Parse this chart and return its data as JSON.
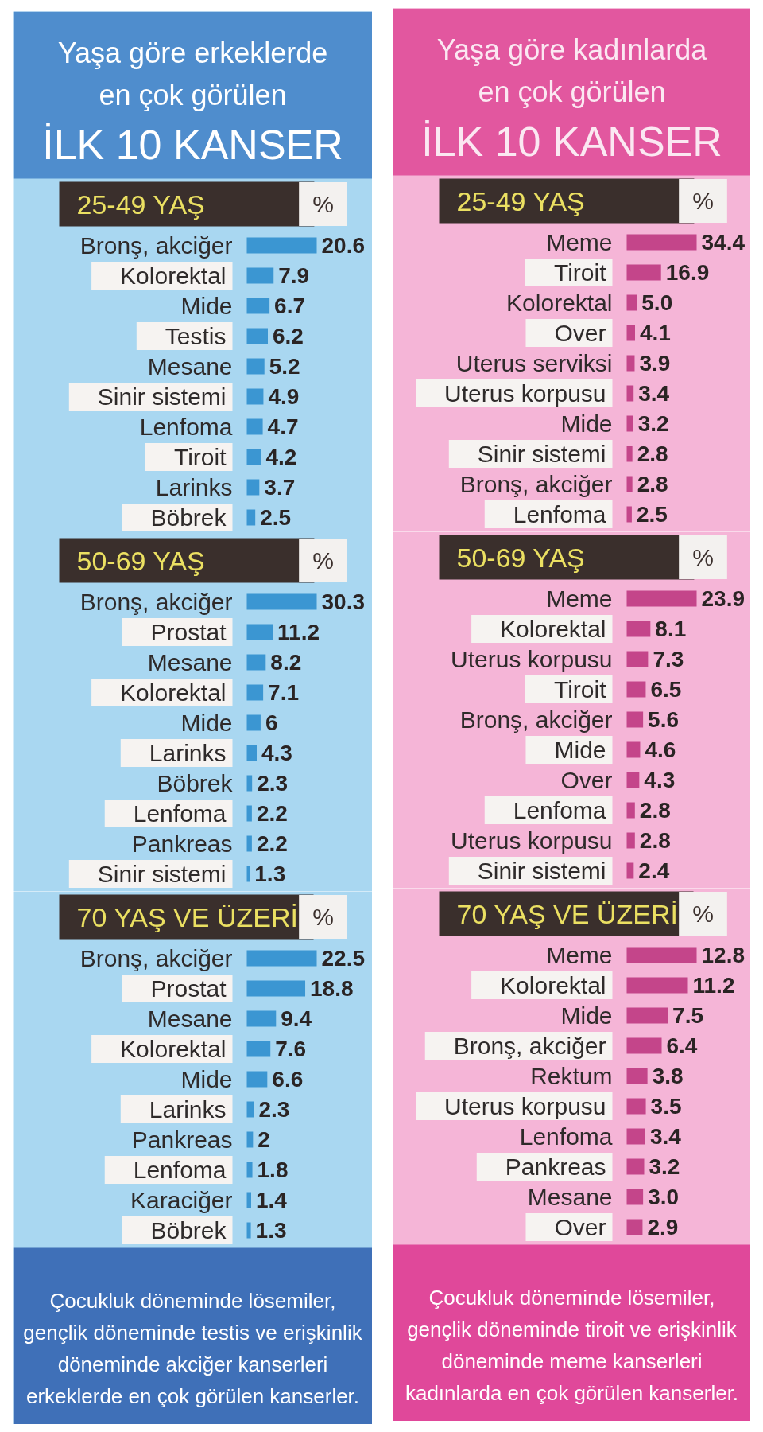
{
  "chart_data": [
    {
      "type": "bar",
      "orientation": "horizontal",
      "title": "Yaşa göre erkeklerde\nen çok görülen\nİLK 10 KANSER",
      "subtitle": "25-49 YAŞ",
      "xlabel": "%",
      "categories": [
        "Bronş, akciğer",
        "Kolorektal",
        "Mide",
        "Testis",
        "Mesane",
        "Sinir sistemi",
        "Lenfoma",
        "Tiroit",
        "Larinks",
        "Böbrek"
      ],
      "values": [
        20.6,
        7.9,
        6.7,
        6.2,
        5.2,
        4.9,
        4.7,
        4.2,
        3.7,
        2.5
      ],
      "color": "#3b96d2",
      "data_labels": true
    },
    {
      "type": "bar",
      "orientation": "horizontal",
      "title": "50-69 YAŞ",
      "xlabel": "%",
      "categories": [
        "Bronş, akciğer",
        "Prostat",
        "Mesane",
        "Kolorektal",
        "Mide",
        "Larinks",
        "Böbrek",
        "Lenfoma",
        "Pankreas",
        "Sinir sistemi"
      ],
      "values": [
        30.3,
        11.2,
        8.2,
        7.1,
        6,
        4.3,
        2.3,
        2.2,
        2.2,
        1.3
      ],
      "color": "#3b96d2",
      "data_labels": true
    },
    {
      "type": "bar",
      "orientation": "horizontal",
      "title": "70 YAŞ VE ÜZERİ",
      "xlabel": "%",
      "categories": [
        "Bronş, akciğer",
        "Prostat",
        "Mesane",
        "Kolorektal",
        "Mide",
        "Larinks",
        "Pankreas",
        "Lenfoma",
        "Karaciğer",
        "Böbrek"
      ],
      "values": [
        22.5,
        18.8,
        9.4,
        7.6,
        6.6,
        2.3,
        2,
        1.8,
        1.4,
        1.3
      ],
      "color": "#3b96d2",
      "data_labels": true,
      "annotations": [
        "Çocukluk döneminde lösemiler,\ngençlik döneminde testis ve erişkinlik\ndöneminde akciğer kanserleri\nerkeklerde en çok görülen kanserler."
      ]
    },
    {
      "type": "bar",
      "orientation": "horizontal",
      "title": "Yaşa göre kadınlarda\nen çok görülen\nİLK 10 KANSER",
      "subtitle": "25-49 YAŞ",
      "xlabel": "%",
      "categories": [
        "Meme",
        "Tiroit",
        "Kolorektal",
        "Over",
        "Uterus serviksi",
        "Uterus korpusu",
        "Mide",
        "Sinir sistemi",
        "Bronş, akciğer",
        "Lenfoma"
      ],
      "values": [
        34.4,
        16.9,
        5.0,
        4.1,
        3.9,
        3.4,
        3.2,
        2.8,
        2.8,
        2.5
      ],
      "value_labels": [
        "34.4",
        "16.9",
        "5.0",
        "4.1",
        "3.9",
        "3.4",
        "3.2",
        "2.8",
        "2.8",
        "2.5"
      ],
      "color": "#c4458a"
    },
    {
      "type": "bar",
      "orientation": "horizontal",
      "title": "50-69 YAŞ",
      "xlabel": "%",
      "categories": [
        "Meme",
        "Kolorektal",
        "Uterus korpusu",
        "Tiroit",
        "Bronş, akciğer",
        "Mide",
        "Over",
        "Lenfoma",
        "Uterus korpusu",
        "Sinir sistemi"
      ],
      "values": [
        23.9,
        8.1,
        7.3,
        6.5,
        5.6,
        4.6,
        4.3,
        2.8,
        2.8,
        2.4
      ],
      "color": "#c4458a",
      "data_labels": true
    },
    {
      "type": "bar",
      "orientation": "horizontal",
      "title": "70 YAŞ VE ÜZERİ",
      "xlabel": "%",
      "categories": [
        "Meme",
        "Kolorektal",
        "Mide",
        "Bronş, akciğer",
        "Rektum",
        "Uterus korpusu",
        "Lenfoma",
        "Pankreas",
        "Mesane",
        "Over"
      ],
      "values": [
        12.8,
        11.2,
        7.5,
        6.4,
        3.8,
        3.5,
        3.4,
        3.2,
        3.0,
        2.9
      ],
      "value_labels": [
        "12.8",
        "11.2",
        "7.5",
        "6.4",
        "3.8",
        "3.5",
        "3.4",
        "3.2",
        "3.0",
        "2.9"
      ],
      "color": "#c4458a",
      "annotations": [
        "Çocukluk döneminde lösemiler,\ngençlik döneminde tiroit ve erişkinlik\ndöneminde meme kanserleri\nkadınlarda en çok görülen kanserler."
      ]
    }
  ]
}
